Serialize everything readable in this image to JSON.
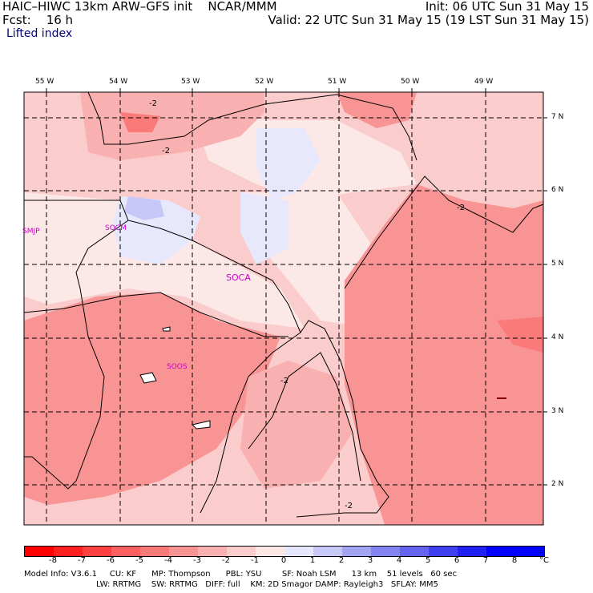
{
  "header": {
    "model": "HAIC–HIWC 13km ARW–GFS init    NCAR/MMM",
    "forecast": "Fcst:    16 h",
    "field": "Lifted index",
    "init": "Init: 06 UTC Sun 31 May 15",
    "valid": "Valid: 22 UTC Sun 31 May 15 (19 LST Sun 31 May 15)"
  },
  "map": {
    "lon_labels": [
      "55 W",
      "54 W",
      "53 W",
      "52 W",
      "51 W",
      "50 W",
      "49 W"
    ],
    "lat_labels": [
      "7 N",
      "6 N",
      "5 N",
      "4 N",
      "3 N",
      "2 N"
    ],
    "stations": [
      "SMJP",
      "SOCM",
      "SOCA",
      "SOOS"
    ],
    "contour_label": "-2"
  },
  "colorbar": {
    "labels": [
      "-8",
      "-7",
      "-6",
      "-5",
      "-4",
      "-3",
      "-2",
      "-1",
      "0",
      "1",
      "2",
      "3",
      "4",
      "5",
      "6",
      "7",
      "8"
    ],
    "unit": "°C",
    "colors": [
      "#ff0000",
      "#ff2020",
      "#ff4040",
      "#ff6060",
      "#fa7a7a",
      "#f89494",
      "#f9b0b0",
      "#fbcccc",
      "#fde8e8",
      "#e8e8fc",
      "#c8c8f8",
      "#a4a4f4",
      "#8484f0",
      "#6464f0",
      "#4040f0",
      "#2020f4",
      "#0000ff"
    ]
  },
  "model_info": {
    "line1": "Model Info: V3.6.1     CU: KF      MP: Thompson      PBL: YSU        SF: Noah LSM      13 km    51 levels   60 sec",
    "line2": "LW: RRTMG    SW: RRTMG   DIFF: full    KM: 2D Smagor DAMP: Rayleigh3   SFLAY: MM5"
  }
}
